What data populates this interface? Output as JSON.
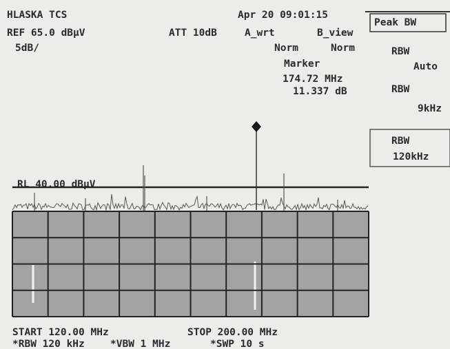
{
  "header": {
    "instrument": "HLASKA TCS",
    "datetime": "Apr 20 09:01:15"
  },
  "settings": {
    "reference": "REF 65.0 dBµV",
    "attenuation": "ATT 10dB",
    "trace_a": "A_wrt",
    "trace_b": "B_view",
    "scale": "5dB/",
    "trace_a_mode": "Norm",
    "trace_b_mode": "Norm"
  },
  "marker": {
    "label": "Marker",
    "frequency": "174.72 MHz",
    "level": "11.337 dB"
  },
  "softkeys": {
    "title": "Peak BW",
    "items": [
      {
        "label": "RBW",
        "value": "Auto"
      },
      {
        "label": "RBW",
        "value": "9kHz"
      },
      {
        "label": "RBW",
        "value": "120kHz"
      }
    ]
  },
  "reference_level": "RL 40.00 dBµV",
  "footer": {
    "start": "START 120.00 MHz",
    "stop": "STOP 200.00 MHz",
    "rbw": "*RBW 120 kHz",
    "vbw": "*VBW 1 MHz",
    "sweep": "*SWP 10 s"
  }
}
